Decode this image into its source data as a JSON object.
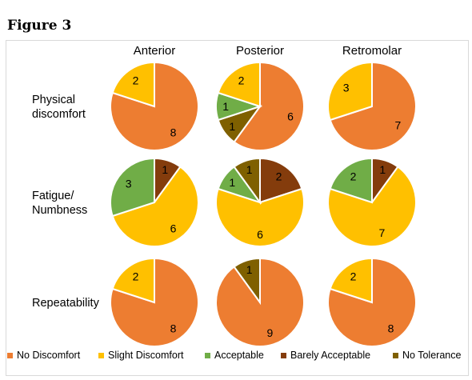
{
  "figure_title": "Figure 3",
  "chart_data": {
    "type": "pie",
    "columns": [
      "Anterior",
      "Posterior",
      "Retromolar"
    ],
    "rows": [
      {
        "label_lines": [
          "Physical",
          "discomfort"
        ]
      },
      {
        "label_lines": [
          "Fatigue/",
          "Numbness"
        ]
      },
      {
        "label_lines": [
          "Repeatability"
        ]
      }
    ],
    "categories": [
      "No Discomfort",
      "Slight Discomfort",
      "Acceptable",
      "Barely Acceptable",
      "No Tolerance"
    ],
    "colors": [
      "#ED7D31",
      "#FFC000",
      "#70AD47",
      "#843C0C",
      "#7F6000"
    ],
    "values": [
      [
        [
          8,
          2,
          0,
          0,
          0
        ],
        [
          6,
          2,
          1,
          0,
          1
        ],
        [
          7,
          3,
          0,
          0,
          0
        ]
      ],
      [
        [
          0,
          6,
          3,
          1,
          0
        ],
        [
          0,
          6,
          1,
          2,
          1
        ],
        [
          0,
          7,
          2,
          1,
          0
        ]
      ],
      [
        [
          8,
          2,
          0,
          0,
          0
        ],
        [
          9,
          0,
          0,
          0,
          1
        ],
        [
          8,
          2,
          0,
          0,
          0
        ]
      ]
    ],
    "legend_position": "bottom"
  }
}
